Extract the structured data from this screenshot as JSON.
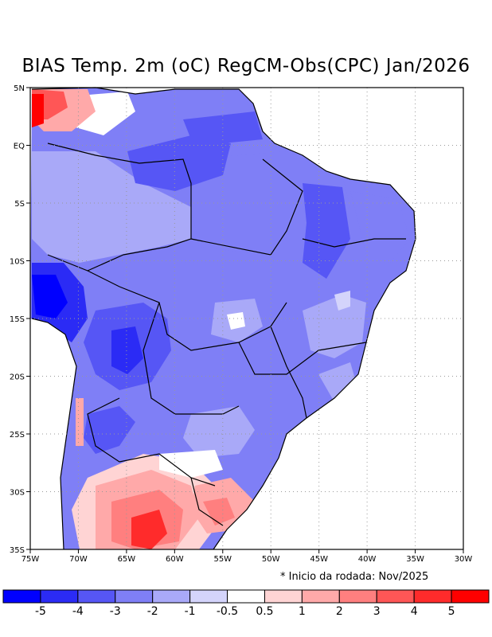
{
  "title": "BIAS Temp. 2m (oC) RegCM-Obs(CPC) Jan/2026",
  "note": "* Inicio da rodada: Nov/2025",
  "map": {
    "lon_range": [
      -75,
      -30
    ],
    "lat_range": [
      -35,
      5
    ],
    "x_ticks": [
      "75W",
      "70W",
      "65W",
      "60W",
      "55W",
      "50W",
      "45W",
      "40W",
      "35W",
      "30W"
    ],
    "y_ticks": [
      "5N",
      "EQ",
      "5S",
      "10S",
      "15S",
      "20S",
      "25S",
      "30S",
      "35S"
    ],
    "gridlines": "dotted"
  },
  "colorbar": {
    "levels": [
      "-5",
      "-4",
      "-3",
      "-2",
      "-1",
      "-0.5",
      "0.5",
      "1",
      "2",
      "3",
      "4",
      "5"
    ],
    "colors": [
      "#0000ff",
      "#2b2bf5",
      "#5656f5",
      "#7f7ff6",
      "#a9a9f8",
      "#d4d4fb",
      "#ffffff",
      "#ffd4d4",
      "#ffa9a9",
      "#ff7f7f",
      "#ff5656",
      "#ff2b2b",
      "#ff0000"
    ]
  }
}
